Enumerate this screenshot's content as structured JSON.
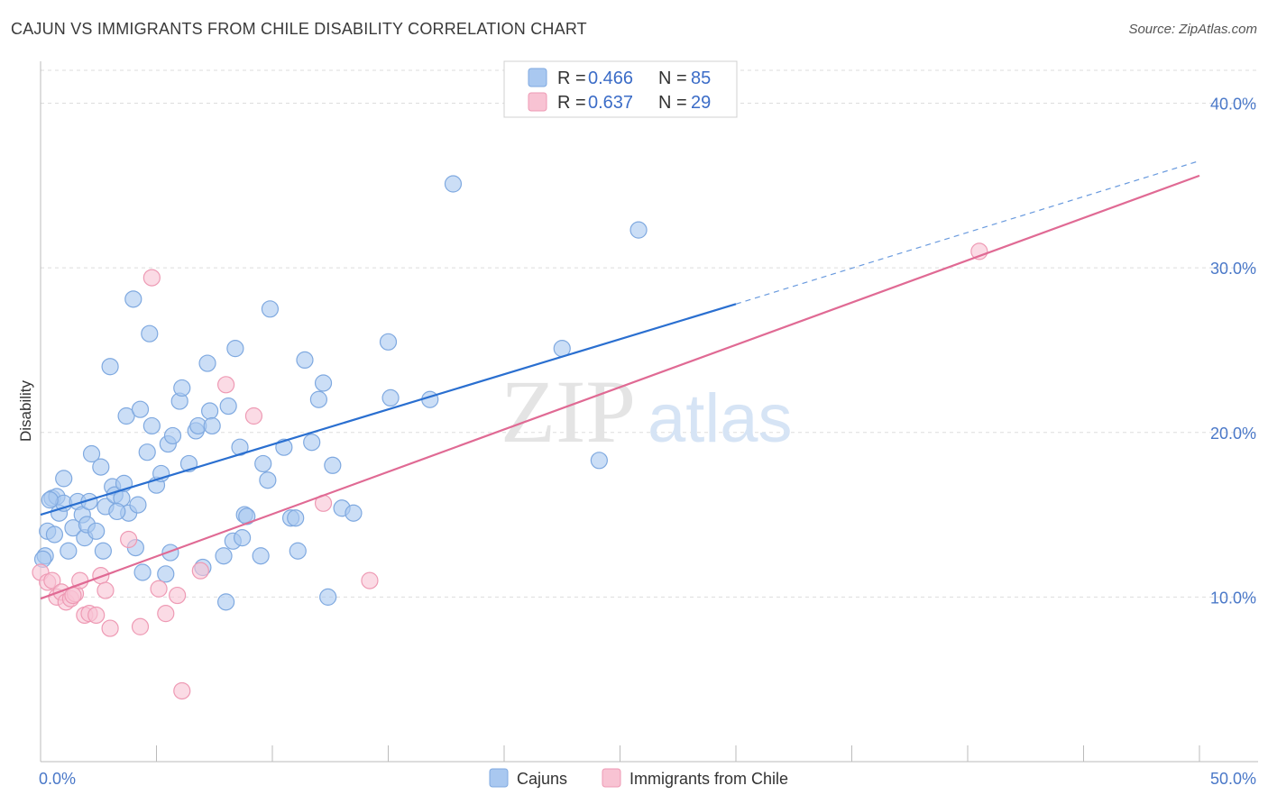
{
  "title": "CAJUN VS IMMIGRANTS FROM CHILE DISABILITY CORRELATION CHART",
  "source": "Source: ZipAtlas.com",
  "watermark": {
    "zip": "ZIP",
    "atlas": "atlas"
  },
  "legend_top": [
    {
      "r_label": "R = ",
      "r_value": "0.466",
      "n_label": "N = ",
      "n_value": "85",
      "color": "#a9c8f0",
      "stroke": "#7fa9e0"
    },
    {
      "r_label": "R = ",
      "r_value": "0.637",
      "n_label": "N = ",
      "n_value": "29",
      "color": "#f8c3d3",
      "stroke": "#ee9ab4"
    }
  ],
  "legend_bottom": [
    {
      "label": "Cajuns",
      "color": "#a9c8f0",
      "stroke": "#7fa9e0"
    },
    {
      "label": "Immigrants from Chile",
      "color": "#f8c3d3",
      "stroke": "#ee9ab4"
    }
  ],
  "chart_data": {
    "type": "scatter",
    "xlabel": "",
    "ylabel": "Disability",
    "xlim": [
      0,
      50
    ],
    "ylim": [
      0,
      42
    ],
    "x_tick_labels": [
      {
        "value": 0,
        "label": "0.0%"
      },
      {
        "value": 50,
        "label": "50.0%"
      }
    ],
    "y_tick_labels": [
      {
        "value": 10,
        "label": "10.0%"
      },
      {
        "value": 20,
        "label": "20.0%"
      },
      {
        "value": 30,
        "label": "30.0%"
      },
      {
        "value": 40,
        "label": "40.0%"
      }
    ],
    "grid": true,
    "series": [
      {
        "name": "Cajuns",
        "color": "#a9c8f0",
        "stroke": "#7fa9e0",
        "line_color": "#2a6fd0",
        "trend": {
          "x0": 0,
          "y0": 15.0,
          "x1": 30,
          "y1": 27.8,
          "dash_to_x": 50,
          "dash_to_y": 36.5
        },
        "points": [
          [
            0.2,
            12.5
          ],
          [
            0.3,
            14.0
          ],
          [
            0.5,
            16.0
          ],
          [
            0.6,
            13.8
          ],
          [
            0.7,
            16.1
          ],
          [
            0.8,
            15.1
          ],
          [
            1.0,
            15.7
          ],
          [
            1.0,
            17.2
          ],
          [
            1.2,
            12.8
          ],
          [
            1.4,
            14.2
          ],
          [
            1.6,
            15.8
          ],
          [
            1.8,
            15.0
          ],
          [
            1.9,
            13.6
          ],
          [
            2.0,
            14.4
          ],
          [
            2.2,
            18.7
          ],
          [
            2.4,
            14.0
          ],
          [
            2.6,
            17.9
          ],
          [
            2.7,
            12.8
          ],
          [
            2.8,
            15.5
          ],
          [
            3.0,
            24.0
          ],
          [
            3.1,
            16.7
          ],
          [
            3.2,
            16.2
          ],
          [
            3.5,
            16.0
          ],
          [
            3.6,
            16.9
          ],
          [
            3.7,
            21.0
          ],
          [
            3.8,
            15.1
          ],
          [
            4.0,
            28.1
          ],
          [
            4.1,
            13.0
          ],
          [
            4.2,
            15.6
          ],
          [
            4.3,
            21.4
          ],
          [
            4.4,
            11.5
          ],
          [
            4.6,
            18.8
          ],
          [
            4.7,
            26.0
          ],
          [
            4.8,
            20.4
          ],
          [
            5.0,
            16.8
          ],
          [
            5.2,
            17.5
          ],
          [
            5.4,
            11.4
          ],
          [
            5.5,
            19.3
          ],
          [
            5.6,
            12.7
          ],
          [
            5.7,
            19.8
          ],
          [
            6.0,
            21.9
          ],
          [
            6.1,
            22.7
          ],
          [
            6.4,
            18.1
          ],
          [
            6.7,
            20.1
          ],
          [
            6.8,
            20.4
          ],
          [
            7.0,
            11.8
          ],
          [
            7.2,
            24.2
          ],
          [
            7.3,
            21.3
          ],
          [
            7.4,
            20.4
          ],
          [
            7.9,
            12.5
          ],
          [
            8.0,
            9.7
          ],
          [
            8.1,
            21.6
          ],
          [
            8.3,
            13.4
          ],
          [
            8.4,
            25.1
          ],
          [
            8.6,
            19.1
          ],
          [
            8.7,
            13.6
          ],
          [
            8.8,
            15.0
          ],
          [
            8.9,
            14.9
          ],
          [
            9.5,
            12.5
          ],
          [
            9.6,
            18.1
          ],
          [
            9.8,
            17.1
          ],
          [
            9.9,
            27.5
          ],
          [
            10.5,
            19.1
          ],
          [
            10.8,
            14.8
          ],
          [
            11.0,
            14.8
          ],
          [
            11.1,
            12.8
          ],
          [
            11.4,
            24.4
          ],
          [
            11.7,
            19.4
          ],
          [
            12.0,
            22.0
          ],
          [
            12.2,
            23.0
          ],
          [
            12.4,
            10.0
          ],
          [
            12.6,
            18.0
          ],
          [
            13.0,
            15.4
          ],
          [
            13.5,
            15.1
          ],
          [
            15.0,
            25.5
          ],
          [
            15.1,
            22.1
          ],
          [
            16.8,
            22.0
          ],
          [
            17.8,
            35.1
          ],
          [
            22.5,
            25.1
          ],
          [
            24.1,
            18.3
          ],
          [
            25.8,
            32.3
          ],
          [
            0.1,
            12.3
          ],
          [
            0.4,
            15.9
          ],
          [
            2.1,
            15.8
          ],
          [
            3.3,
            15.2
          ]
        ]
      },
      {
        "name": "Immigrants from Chile",
        "color": "#f8c3d3",
        "stroke": "#ee9ab4",
        "line_color": "#e06a94",
        "trend": {
          "x0": 0,
          "y0": 9.9,
          "x1": 50,
          "y1": 35.6
        },
        "points": [
          [
            0.0,
            11.5
          ],
          [
            0.3,
            10.9
          ],
          [
            0.5,
            11.0
          ],
          [
            0.7,
            10.0
          ],
          [
            0.9,
            10.3
          ],
          [
            1.1,
            9.7
          ],
          [
            1.3,
            9.9
          ],
          [
            1.5,
            10.2
          ],
          [
            1.7,
            11.0
          ],
          [
            1.9,
            8.9
          ],
          [
            2.1,
            9.0
          ],
          [
            2.4,
            8.9
          ],
          [
            2.6,
            11.3
          ],
          [
            2.8,
            10.4
          ],
          [
            3.0,
            8.1
          ],
          [
            3.8,
            13.5
          ],
          [
            4.3,
            8.2
          ],
          [
            4.8,
            29.4
          ],
          [
            5.1,
            10.5
          ],
          [
            5.4,
            9.0
          ],
          [
            5.9,
            10.1
          ],
          [
            6.1,
            4.3
          ],
          [
            6.9,
            11.6
          ],
          [
            8.0,
            22.9
          ],
          [
            9.2,
            21.0
          ],
          [
            12.2,
            15.7
          ],
          [
            14.2,
            11.0
          ],
          [
            40.5,
            31.0
          ],
          [
            1.4,
            10.1
          ]
        ]
      }
    ]
  }
}
